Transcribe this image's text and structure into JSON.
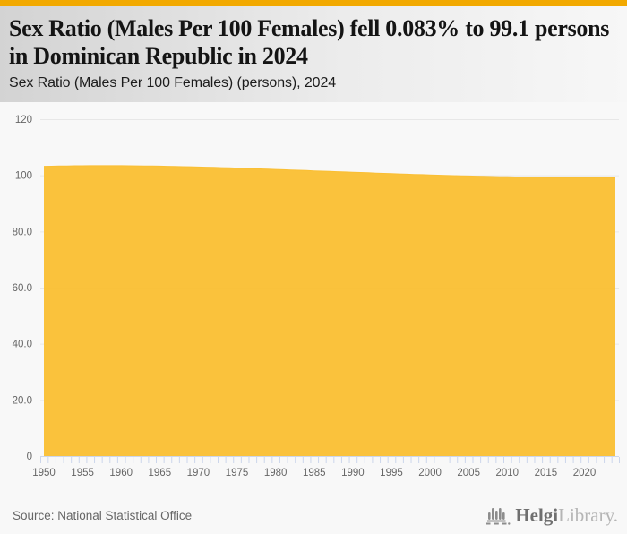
{
  "header": {
    "title": "Sex Ratio (Males Per 100 Females) fell 0.083% to 99.1 persons in Dominican Republic in 2024",
    "subtitle": "Sex Ratio (Males Per 100 Females) (persons), 2024",
    "accent_color": "#F2A900"
  },
  "chart_data": {
    "type": "area",
    "title": "Sex Ratio (Males Per 100 Females) (persons), 2024",
    "xlabel": "",
    "ylabel": "",
    "legend": false,
    "grid": true,
    "ylim": [
      0,
      120
    ],
    "area_color": "#FABF34",
    "grid_color": "#e7e7e7",
    "tick_color": "#ccd6eb",
    "label_color": "#666666",
    "y_ticks": [
      {
        "value": 0,
        "label": "0"
      },
      {
        "value": 20,
        "label": "20.0"
      },
      {
        "value": 40,
        "label": "40.0"
      },
      {
        "value": 60,
        "label": "60.0"
      },
      {
        "value": 80,
        "label": "80.0"
      },
      {
        "value": 100,
        "label": "100"
      },
      {
        "value": 120,
        "label": "120"
      }
    ],
    "x_tick_labels": [
      1950,
      1955,
      1960,
      1965,
      1970,
      1975,
      1980,
      1985,
      1990,
      1995,
      2000,
      2005,
      2010,
      2015,
      2020
    ],
    "x": [
      1950,
      1951,
      1952,
      1953,
      1954,
      1955,
      1956,
      1957,
      1958,
      1959,
      1960,
      1961,
      1962,
      1963,
      1964,
      1965,
      1966,
      1967,
      1968,
      1969,
      1970,
      1971,
      1972,
      1973,
      1974,
      1975,
      1976,
      1977,
      1978,
      1979,
      1980,
      1981,
      1982,
      1983,
      1984,
      1985,
      1986,
      1987,
      1988,
      1989,
      1990,
      1991,
      1992,
      1993,
      1994,
      1995,
      1996,
      1997,
      1998,
      1999,
      2000,
      2001,
      2002,
      2003,
      2004,
      2005,
      2006,
      2007,
      2008,
      2009,
      2010,
      2011,
      2012,
      2013,
      2014,
      2015,
      2016,
      2017,
      2018,
      2019,
      2020,
      2021,
      2022,
      2023,
      2024
    ],
    "series": [
      {
        "name": "Sex Ratio (Males Per 100 Females)",
        "values": [
          103.2,
          103.26,
          103.31,
          103.35,
          103.39,
          103.42,
          103.44,
          103.45,
          103.45,
          103.44,
          103.43,
          103.41,
          103.38,
          103.35,
          103.31,
          103.27,
          103.22,
          103.16,
          103.1,
          103.04,
          102.97,
          102.9,
          102.82,
          102.74,
          102.66,
          102.57,
          102.48,
          102.39,
          102.3,
          102.2,
          102.1,
          102.0,
          101.9,
          101.8,
          101.7,
          101.6,
          101.5,
          101.4,
          101.3,
          101.2,
          101.1,
          101.0,
          100.9,
          100.8,
          100.7,
          100.6,
          100.5,
          100.41,
          100.32,
          100.23,
          100.14,
          100.06,
          99.98,
          99.9,
          99.83,
          99.76,
          99.69,
          99.63,
          99.57,
          99.52,
          99.47,
          99.42,
          99.38,
          99.34,
          99.31,
          99.28,
          99.25,
          99.23,
          99.21,
          99.2,
          99.19,
          99.18,
          99.18,
          99.18,
          99.1
        ]
      }
    ]
  },
  "footer": {
    "source": "Source: National Statistical Office",
    "logo": {
      "name": "Helgi",
      "suffix": "Library."
    }
  }
}
